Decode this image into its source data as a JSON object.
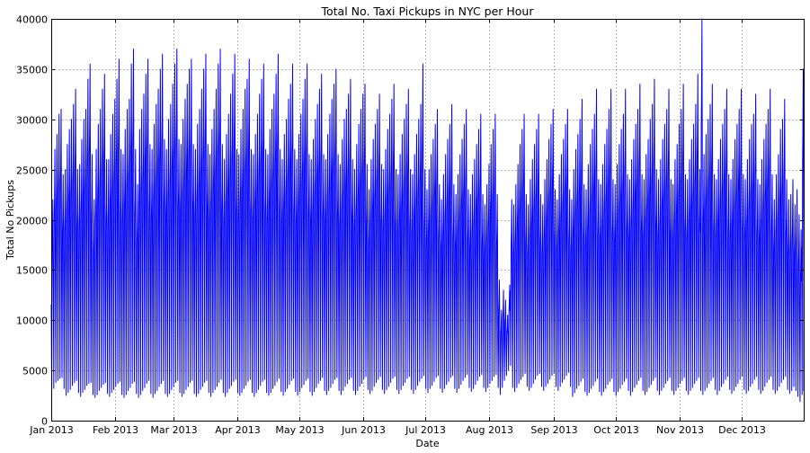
{
  "chart_data": {
    "type": "line",
    "title": "Total No. Taxi Pickups in NYC per Hour",
    "xlabel": "Date",
    "ylabel": "Total No Pickups",
    "xlim": [
      "2013-01-01",
      "2013-12-31"
    ],
    "ylim": [
      0,
      40000
    ],
    "grid": true,
    "line_color": "#0000ff",
    "x_ticks": [
      {
        "date": "2013-01-01",
        "label": "Jan 2013"
      },
      {
        "date": "2013-02-01",
        "label": "Feb 2013"
      },
      {
        "date": "2013-03-01",
        "label": "Mar 2013"
      },
      {
        "date": "2013-04-01",
        "label": "Apr 2013"
      },
      {
        "date": "2013-05-01",
        "label": "May 2013"
      },
      {
        "date": "2013-06-01",
        "label": "Jun 2013"
      },
      {
        "date": "2013-07-01",
        "label": "Jul 2013"
      },
      {
        "date": "2013-08-01",
        "label": "Aug 2013"
      },
      {
        "date": "2013-09-01",
        "label": "Sep 2013"
      },
      {
        "date": "2013-10-01",
        "label": "Oct 2013"
      },
      {
        "date": "2013-11-01",
        "label": "Nov 2013"
      },
      {
        "date": "2013-12-01",
        "label": "Dec 2013"
      }
    ],
    "y_ticks": [
      0,
      5000,
      10000,
      15000,
      20000,
      25000,
      30000,
      35000,
      40000
    ],
    "series": [
      {
        "daily": {
          "start_date": "2013-01-01",
          "daily_max": [
            22000,
            27000,
            28500,
            30500,
            31000,
            24500,
            25000,
            27500,
            29000,
            30000,
            31500,
            33000,
            25000,
            25500,
            28000,
            30000,
            31000,
            34000,
            35500,
            26500,
            22000,
            27000,
            29500,
            31000,
            33000,
            34500,
            26000,
            26000,
            28500,
            30500,
            32000,
            34000,
            36000,
            27000,
            26500,
            29000,
            31000,
            32000,
            35500,
            37000,
            27000,
            23500,
            29000,
            31000,
            32500,
            34500,
            36000,
            27500,
            27000,
            29500,
            31500,
            33000,
            35000,
            36500,
            28000,
            27000,
            30000,
            31500,
            33500,
            35500,
            37000,
            28000,
            27500,
            30000,
            32000,
            33500,
            35000,
            36000,
            27500,
            27000,
            29500,
            31000,
            33000,
            35000,
            36500,
            27500,
            26500,
            29000,
            31000,
            33000,
            35500,
            37000,
            27500,
            26000,
            28500,
            30500,
            32500,
            34500,
            36500,
            27000,
            26500,
            29000,
            31000,
            33000,
            34000,
            36000,
            27000,
            26500,
            28500,
            30500,
            32500,
            34000,
            35500,
            27000,
            26500,
            29000,
            31000,
            32500,
            34500,
            36500,
            27000,
            26000,
            28500,
            30000,
            32000,
            33500,
            35500,
            27000,
            26000,
            28500,
            30500,
            32000,
            34000,
            35500,
            26500,
            26000,
            28000,
            30000,
            31500,
            33000,
            34500,
            26500,
            26000,
            28500,
            30500,
            32000,
            33500,
            35000,
            26500,
            25500,
            28000,
            30000,
            31000,
            32500,
            34000,
            26000,
            25000,
            27500,
            29500,
            31000,
            32500,
            33500,
            25500,
            23000,
            26000,
            28000,
            29500,
            31000,
            32500,
            25500,
            25000,
            27000,
            29000,
            30500,
            32000,
            33500,
            25000,
            24500,
            26500,
            28500,
            30000,
            31500,
            33000,
            25000,
            24500,
            26500,
            28500,
            30000,
            31500,
            35500,
            25000,
            23000,
            25000,
            26500,
            28000,
            29500,
            31000,
            23500,
            22000,
            24500,
            26500,
            28000,
            29500,
            31500,
            23500,
            22500,
            24500,
            26500,
            28000,
            29500,
            31000,
            23000,
            22500,
            24500,
            26000,
            27500,
            29000,
            30500,
            22500,
            21500,
            23500,
            25500,
            27500,
            29000,
            30500,
            22500,
            14000,
            11000,
            13000,
            12000,
            10500,
            13500,
            22000,
            21500,
            23500,
            25500,
            27500,
            29000,
            30500,
            22500,
            21500,
            24000,
            26000,
            27500,
            29000,
            30500,
            22500,
            21500,
            24000,
            26000,
            28000,
            29500,
            31000,
            23000,
            22000,
            24500,
            26500,
            28000,
            29500,
            31000,
            23000,
            22000,
            25000,
            27000,
            28500,
            30000,
            32000,
            23500,
            23000,
            25500,
            27500,
            29000,
            30500,
            33000,
            24000,
            23500,
            25500,
            27500,
            29000,
            31000,
            33000,
            24000,
            23500,
            25500,
            27500,
            29000,
            30500,
            33000,
            24500,
            24000,
            26000,
            28000,
            29500,
            31000,
            33500,
            24500,
            24000,
            26500,
            28000,
            30000,
            31500,
            34000,
            25000,
            24000,
            26000,
            28000,
            29500,
            31000,
            33000,
            24000,
            23500,
            26000,
            27500,
            29500,
            31000,
            33500,
            24500,
            24000,
            26000,
            28000,
            29500,
            31500,
            34500,
            25000,
            40000,
            26500,
            28500,
            30000,
            31500,
            33500,
            24500,
            24000,
            26000,
            28000,
            29500,
            31000,
            33000,
            24500,
            24000,
            26000,
            28000,
            29500,
            31000,
            33000,
            24500,
            24000,
            26000,
            28000,
            29500,
            30500,
            32500,
            24000,
            23500,
            26000,
            28000,
            29500,
            31000,
            33000,
            24500,
            22000,
            24500,
            26500,
            29000,
            30000,
            32000,
            24000,
            22000,
            22500,
            24000,
            21500,
            23000,
            20500,
            19000,
            35000,
            20000
          ],
          "daily_min": [
            3000,
            3200,
            3800,
            4000,
            4200,
            4300,
            3200,
            2500,
            2800,
            3100,
            3500,
            3800,
            4000,
            2800,
            2400,
            2800,
            3100,
            3500,
            3700,
            3800,
            2600,
            2300,
            2600,
            3000,
            3300,
            3600,
            3800,
            2700,
            2400,
            2800,
            3100,
            3400,
            3700,
            3900,
            2600,
            2300,
            2600,
            3000,
            3300,
            3700,
            3900,
            2700,
            2300,
            2600,
            3000,
            3300,
            3700,
            4000,
            2700,
            2300,
            2700,
            3000,
            3400,
            3700,
            4000,
            2700,
            2400,
            2700,
            3100,
            3400,
            3800,
            4000,
            2800,
            2400,
            2700,
            3100,
            3400,
            3800,
            4000,
            2700,
            2400,
            2700,
            3100,
            3400,
            3800,
            4000,
            2800,
            2400,
            2800,
            3100,
            3400,
            3800,
            4100,
            2800,
            2400,
            2800,
            3200,
            3500,
            3900,
            4100,
            2800,
            2500,
            2800,
            3200,
            3500,
            3900,
            4100,
            2800,
            2400,
            2800,
            3100,
            3500,
            3900,
            4100,
            2800,
            2500,
            2800,
            3200,
            3500,
            3900,
            4200,
            2900,
            2500,
            2900,
            3200,
            3600,
            4000,
            4200,
            2900,
            2500,
            2900,
            3300,
            3600,
            4000,
            4200,
            2900,
            2500,
            2900,
            3300,
            3700,
            4000,
            4300,
            3000,
            2600,
            3000,
            3300,
            3700,
            4100,
            4300,
            3000,
            2600,
            3000,
            3400,
            3700,
            4100,
            4300,
            3000,
            2600,
            3000,
            3400,
            3700,
            4100,
            4400,
            3100,
            2700,
            3000,
            3400,
            3800,
            4100,
            4400,
            3100,
            2700,
            3100,
            3400,
            3800,
            4200,
            4400,
            3100,
            2700,
            3100,
            3500,
            3800,
            4200,
            4400,
            3100,
            2700,
            3100,
            3500,
            3900,
            4200,
            4500,
            3200,
            2800,
            3200,
            3500,
            3900,
            4300,
            4500,
            3200,
            2800,
            3200,
            3600,
            3900,
            4300,
            4500,
            3200,
            2800,
            3200,
            3600,
            4000,
            4300,
            4600,
            3300,
            2900,
            3200,
            3600,
            4000,
            4400,
            4600,
            3300,
            2900,
            3300,
            3700,
            4000,
            4400,
            4600,
            3300,
            2600,
            3300,
            4000,
            4500,
            5000,
            5500,
            3300,
            2900,
            3300,
            3700,
            4100,
            4400,
            4700,
            3400,
            3000,
            3300,
            3700,
            4100,
            4500,
            4700,
            3400,
            3000,
            3400,
            3700,
            4100,
            4500,
            4700,
            3400,
            3000,
            3400,
            3800,
            4100,
            4500,
            4800,
            3400,
            2400,
            2800,
            3200,
            3500,
            3900,
            4200,
            2900,
            2500,
            2800,
            3200,
            3500,
            3900,
            4200,
            2900,
            2500,
            2900,
            3200,
            3600,
            3900,
            4200,
            2900,
            2500,
            2900,
            3200,
            3600,
            3900,
            4200,
            3000,
            2500,
            2900,
            3300,
            3600,
            4000,
            4300,
            3000,
            2600,
            2900,
            3300,
            3600,
            4000,
            4300,
            3000,
            2600,
            3000,
            3300,
            3700,
            4000,
            4300,
            3000,
            2600,
            3000,
            3300,
            3700,
            4000,
            4300,
            3000,
            2600,
            3000,
            3300,
            3700,
            4000,
            4300,
            3000,
            2600,
            3000,
            3300,
            3700,
            4000,
            4300,
            3100,
            2600,
            3000,
            3400,
            3700,
            4100,
            4400,
            3100,
            2700,
            3000,
            3400,
            3700,
            4100,
            4400,
            3100,
            2700,
            3000,
            3400,
            3700,
            4100,
            4400,
            3100,
            2700,
            3000,
            3400,
            3800,
            4100,
            4400,
            3100,
            2700,
            3000,
            3400,
            3800,
            4100,
            4400,
            3100,
            2700,
            3000,
            3400,
            3000,
            2400,
            1900,
            2600,
            3000
          ]
        }
      }
    ]
  }
}
